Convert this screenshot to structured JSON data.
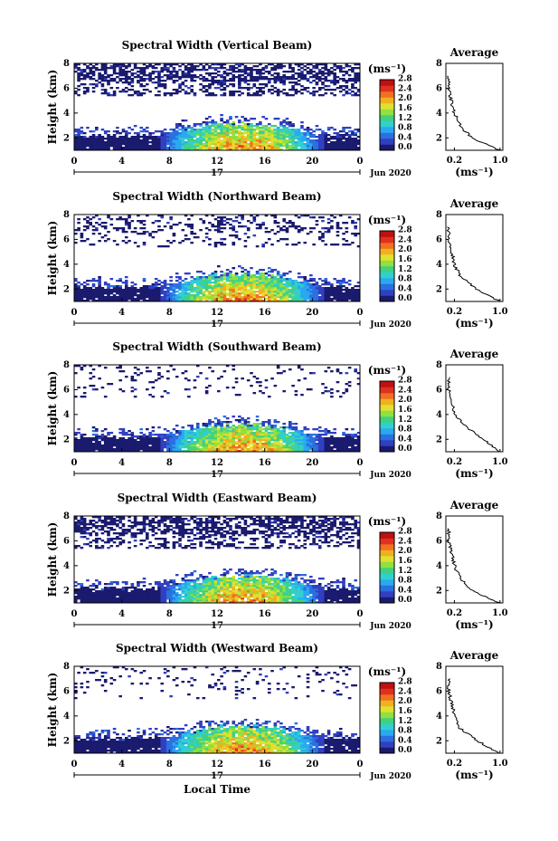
{
  "common": {
    "ylabel": "Height (km)",
    "y_ticks": [
      "2",
      "4",
      "6",
      "8"
    ],
    "x_ticks": [
      "0",
      "4",
      "8",
      "12",
      "16",
      "20",
      "0"
    ],
    "day_label": "17",
    "month_label": "Jun 2020",
    "unit_label": "(ms⁻¹)",
    "colorbar_ticks": [
      "0.0",
      "0.4",
      "0.8",
      "1.2",
      "1.6",
      "2.0",
      "2.4",
      "2.8"
    ],
    "avg_title": "Average",
    "avg_x_ticks": [
      "0.2",
      "1.0"
    ],
    "avg_xlabel": "(ms⁻¹)",
    "avg_y_ticks": [
      "2",
      "4",
      "6",
      "8"
    ],
    "xlabel_bottom": "Local Time"
  },
  "chart_data": [
    {
      "type": "heatmap",
      "title": "Spectral Width (Vertical Beam)",
      "ylabel": "Height (km)",
      "xlabel": "",
      "xlim": [
        0,
        24
      ],
      "ylim": [
        1,
        8
      ],
      "value_range": [
        0,
        2.8
      ],
      "average_profile": {
        "heights": [
          1,
          2,
          3,
          4,
          5,
          6,
          7
        ],
        "values": [
          1.0,
          0.5,
          0.3,
          0.2,
          0.15,
          0.1,
          0.1
        ]
      }
    },
    {
      "type": "heatmap",
      "title": "Spectral Width (Northward Beam)",
      "ylabel": "Height (km)",
      "xlabel": "",
      "xlim": [
        0,
        24
      ],
      "ylim": [
        1,
        8
      ],
      "value_range": [
        0,
        2.8
      ],
      "average_profile": {
        "heights": [
          1,
          2,
          3,
          4,
          5,
          6,
          7
        ],
        "values": [
          1.0,
          0.6,
          0.3,
          0.2,
          0.15,
          0.1,
          0.1
        ]
      }
    },
    {
      "type": "heatmap",
      "title": "Spectral Width (Southward Beam)",
      "ylabel": "Height (km)",
      "xlabel": "",
      "xlim": [
        0,
        24
      ],
      "ylim": [
        1,
        8
      ],
      "value_range": [
        0,
        2.8
      ],
      "average_profile": {
        "heights": [
          1,
          2,
          3,
          4,
          5,
          6,
          7
        ],
        "values": [
          1.0,
          0.7,
          0.4,
          0.2,
          0.15,
          0.1,
          0.1
        ]
      }
    },
    {
      "type": "heatmap",
      "title": "Spectral Width (Eastward Beam)",
      "ylabel": "Height (km)",
      "xlabel": "",
      "xlim": [
        0,
        24
      ],
      "ylim": [
        1,
        8
      ],
      "value_range": [
        0,
        2.8
      ],
      "average_profile": {
        "heights": [
          1,
          2,
          3,
          4,
          5,
          6,
          7
        ],
        "values": [
          1.0,
          0.5,
          0.3,
          0.2,
          0.15,
          0.1,
          0.1
        ]
      }
    },
    {
      "type": "heatmap",
      "title": "Spectral Width (Westward Beam)",
      "ylabel": "Height (km)",
      "xlabel": "Local Time",
      "xlim": [
        0,
        24
      ],
      "ylim": [
        1,
        8
      ],
      "value_range": [
        0,
        2.8
      ],
      "average_profile": {
        "heights": [
          1,
          2,
          3,
          4,
          5,
          6,
          7
        ],
        "values": [
          1.0,
          0.6,
          0.3,
          0.2,
          0.15,
          0.1,
          0.1
        ]
      }
    }
  ],
  "colormap": [
    "#1a1a6e",
    "#3040c0",
    "#2a70e0",
    "#2aa8f0",
    "#30d0d0",
    "#40d080",
    "#90e040",
    "#e0e030",
    "#f0b020",
    "#f07020",
    "#e03020",
    "#c01010"
  ]
}
